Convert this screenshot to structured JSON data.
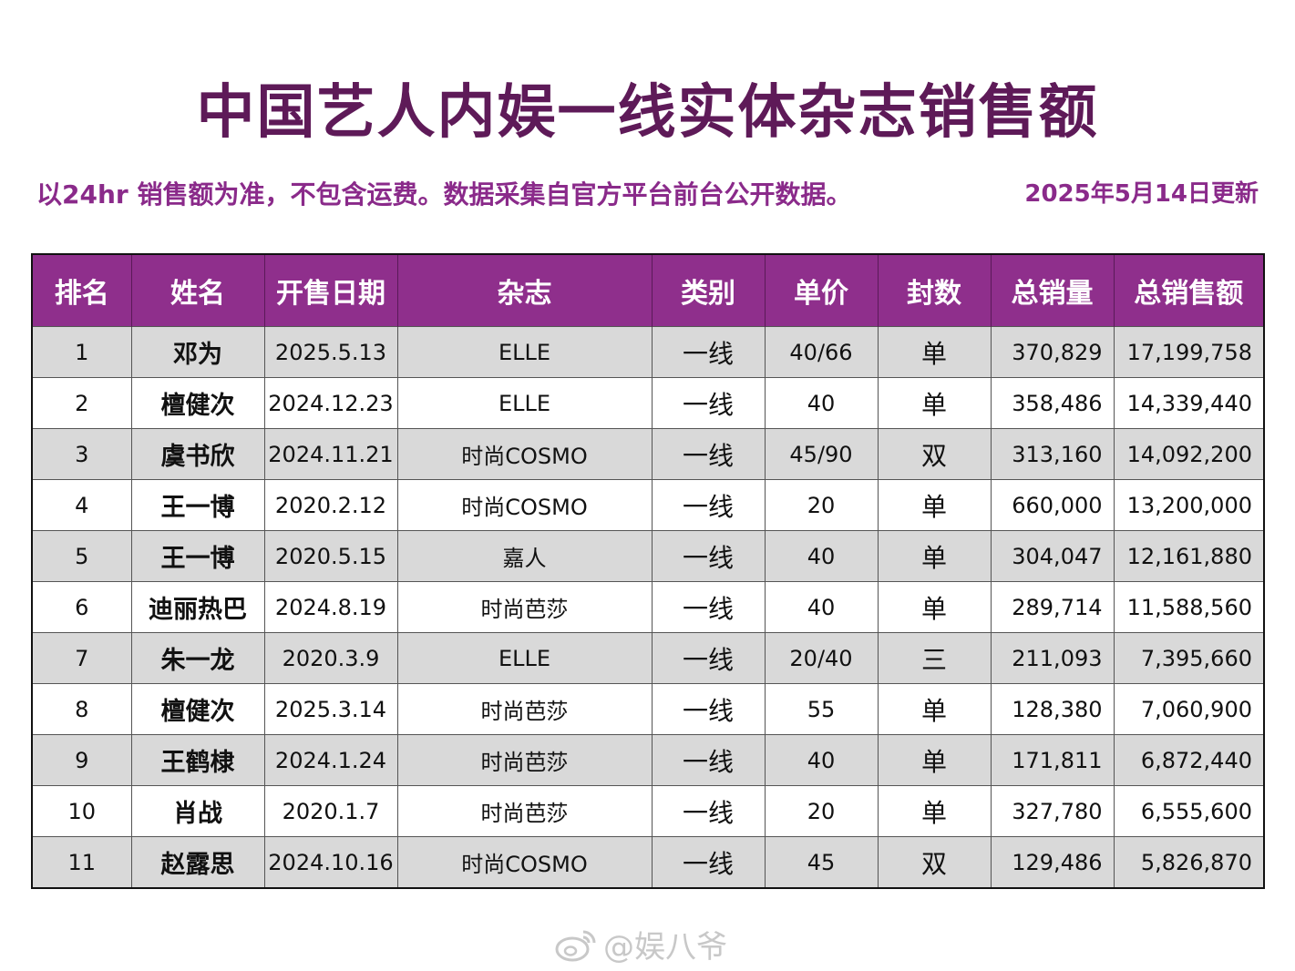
{
  "title": "中国艺人内娱一线实体杂志销售额",
  "subtitle": "以24hr 销售额为准，不包含运费。数据采集自官方平台前台公开数据。",
  "updated": "2025年5月14日更新",
  "headers": [
    "排名",
    "姓名",
    "开售日期",
    "杂志",
    "类别",
    "单价",
    "封数",
    "总销量",
    "总销售额"
  ],
  "rows": [
    {
      "rank": "1",
      "name": "邓为",
      "date": "2025.5.13",
      "magazine": "ELLE",
      "tier": "一线",
      "price": "40/66",
      "covers": "单",
      "volume": "370,829",
      "revenue": "17,199,758"
    },
    {
      "rank": "2",
      "name": "檀健次",
      "date": "2024.12.23",
      "magazine": "ELLE",
      "tier": "一线",
      "price": "40",
      "covers": "单",
      "volume": "358,486",
      "revenue": "14,339,440"
    },
    {
      "rank": "3",
      "name": "虞书欣",
      "date": "2024.11.21",
      "magazine": "时尚COSMO",
      "tier": "一线",
      "price": "45/90",
      "covers": "双",
      "volume": "313,160",
      "revenue": "14,092,200"
    },
    {
      "rank": "4",
      "name": "王一博",
      "date": "2020.2.12",
      "magazine": "时尚COSMO",
      "tier": "一线",
      "price": "20",
      "covers": "单",
      "volume": "660,000",
      "revenue": "13,200,000"
    },
    {
      "rank": "5",
      "name": "王一博",
      "date": "2020.5.15",
      "magazine": "嘉人",
      "tier": "一线",
      "price": "40",
      "covers": "单",
      "volume": "304,047",
      "revenue": "12,161,880"
    },
    {
      "rank": "6",
      "name": "迪丽热巴",
      "date": "2024.8.19",
      "magazine": "时尚芭莎",
      "tier": "一线",
      "price": "40",
      "covers": "单",
      "volume": "289,714",
      "revenue": "11,588,560"
    },
    {
      "rank": "7",
      "name": "朱一龙",
      "date": "2020.3.9",
      "magazine": "ELLE",
      "tier": "一线",
      "price": "20/40",
      "covers": "三",
      "volume": "211,093",
      "revenue": "7,395,660"
    },
    {
      "rank": "8",
      "name": "檀健次",
      "date": "2025.3.14",
      "magazine": "时尚芭莎",
      "tier": "一线",
      "price": "55",
      "covers": "单",
      "volume": "128,380",
      "revenue": "7,060,900"
    },
    {
      "rank": "9",
      "name": "王鹤棣",
      "date": "2024.1.24",
      "magazine": "时尚芭莎",
      "tier": "一线",
      "price": "40",
      "covers": "单",
      "volume": "171,811",
      "revenue": "6,872,440"
    },
    {
      "rank": "10",
      "name": "肖战",
      "date": "2020.1.7",
      "magazine": "时尚芭莎",
      "tier": "一线",
      "price": "20",
      "covers": "单",
      "volume": "327,780",
      "revenue": "6,555,600"
    },
    {
      "rank": "11",
      "name": "赵露思",
      "date": "2024.10.16",
      "magazine": "时尚COSMO",
      "tier": "一线",
      "price": "45",
      "covers": "双",
      "volume": "129,486",
      "revenue": "5,826,870"
    }
  ],
  "watermark": "@娱八爷",
  "colors": {
    "title": "#5e1a58",
    "accent": "#8f2f8c",
    "row_alt": "#d9d9d9"
  },
  "icons": {
    "watermark": "weibo-icon"
  }
}
